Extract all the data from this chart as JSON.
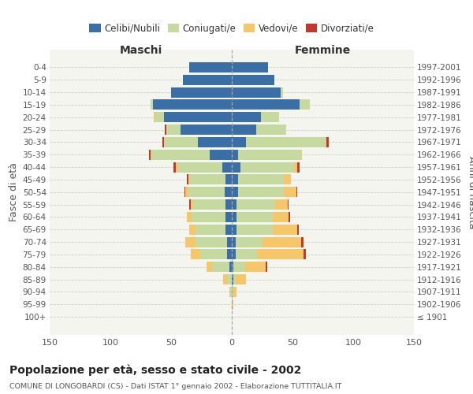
{
  "age_groups": [
    "0-4",
    "5-9",
    "10-14",
    "15-19",
    "20-24",
    "25-29",
    "30-34",
    "35-39",
    "40-44",
    "45-49",
    "50-54",
    "55-59",
    "60-64",
    "65-69",
    "70-74",
    "75-79",
    "80-84",
    "85-89",
    "90-94",
    "95-99",
    "100+"
  ],
  "birth_years": [
    "1997-2001",
    "1992-1996",
    "1987-1991",
    "1982-1986",
    "1977-1981",
    "1972-1976",
    "1967-1971",
    "1962-1966",
    "1957-1961",
    "1952-1956",
    "1947-1951",
    "1942-1946",
    "1937-1941",
    "1932-1936",
    "1927-1931",
    "1922-1926",
    "1917-1921",
    "1912-1916",
    "1907-1911",
    "1902-1906",
    "≤ 1901"
  ],
  "colors": {
    "celibi_nubili": "#3A6EA5",
    "coniugati": "#C5D9A0",
    "vedovi": "#F5C76A",
    "divorziati": "#C0392B"
  },
  "male": {
    "celibi": [
      35,
      40,
      50,
      65,
      56,
      42,
      28,
      18,
      8,
      5,
      6,
      5,
      5,
      5,
      4,
      4,
      2,
      0,
      0,
      0,
      0
    ],
    "coniugati": [
      0,
      0,
      0,
      2,
      7,
      12,
      28,
      48,
      37,
      30,
      30,
      27,
      28,
      25,
      26,
      22,
      14,
      4,
      1,
      0,
      0
    ],
    "vedovi": [
      0,
      0,
      0,
      0,
      1,
      0,
      0,
      1,
      1,
      1,
      2,
      2,
      4,
      5,
      8,
      8,
      5,
      3,
      1,
      0,
      0
    ],
    "divorziati": [
      0,
      0,
      0,
      0,
      0,
      1,
      1,
      1,
      2,
      1,
      1,
      1,
      0,
      0,
      0,
      0,
      0,
      0,
      0,
      0,
      0
    ]
  },
  "female": {
    "nubili": [
      30,
      35,
      40,
      56,
      24,
      20,
      12,
      5,
      7,
      5,
      5,
      4,
      4,
      4,
      3,
      3,
      1,
      1,
      0,
      0,
      0
    ],
    "coniugate": [
      0,
      0,
      2,
      8,
      15,
      25,
      65,
      52,
      44,
      38,
      38,
      32,
      30,
      30,
      22,
      18,
      10,
      2,
      1,
      0,
      0
    ],
    "vedove": [
      0,
      0,
      0,
      0,
      0,
      0,
      1,
      1,
      3,
      6,
      10,
      10,
      13,
      20,
      32,
      38,
      17,
      9,
      3,
      1,
      0
    ],
    "divorziate": [
      0,
      0,
      0,
      0,
      0,
      0,
      2,
      0,
      2,
      0,
      1,
      1,
      1,
      1,
      2,
      2,
      1,
      0,
      0,
      0,
      0
    ]
  },
  "xlim": 150,
  "title": "Popolazione per età, sesso e stato civile - 2002",
  "subtitle": "COMUNE DI LONGOBARDI (CS) - Dati ISTAT 1° gennaio 2002 - Elaborazione TUTTITALIA.IT",
  "ylabel_left": "Fasce di età",
  "ylabel_right": "Anni di nascita",
  "xlabel_left": "Maschi",
  "xlabel_right": "Femmine"
}
